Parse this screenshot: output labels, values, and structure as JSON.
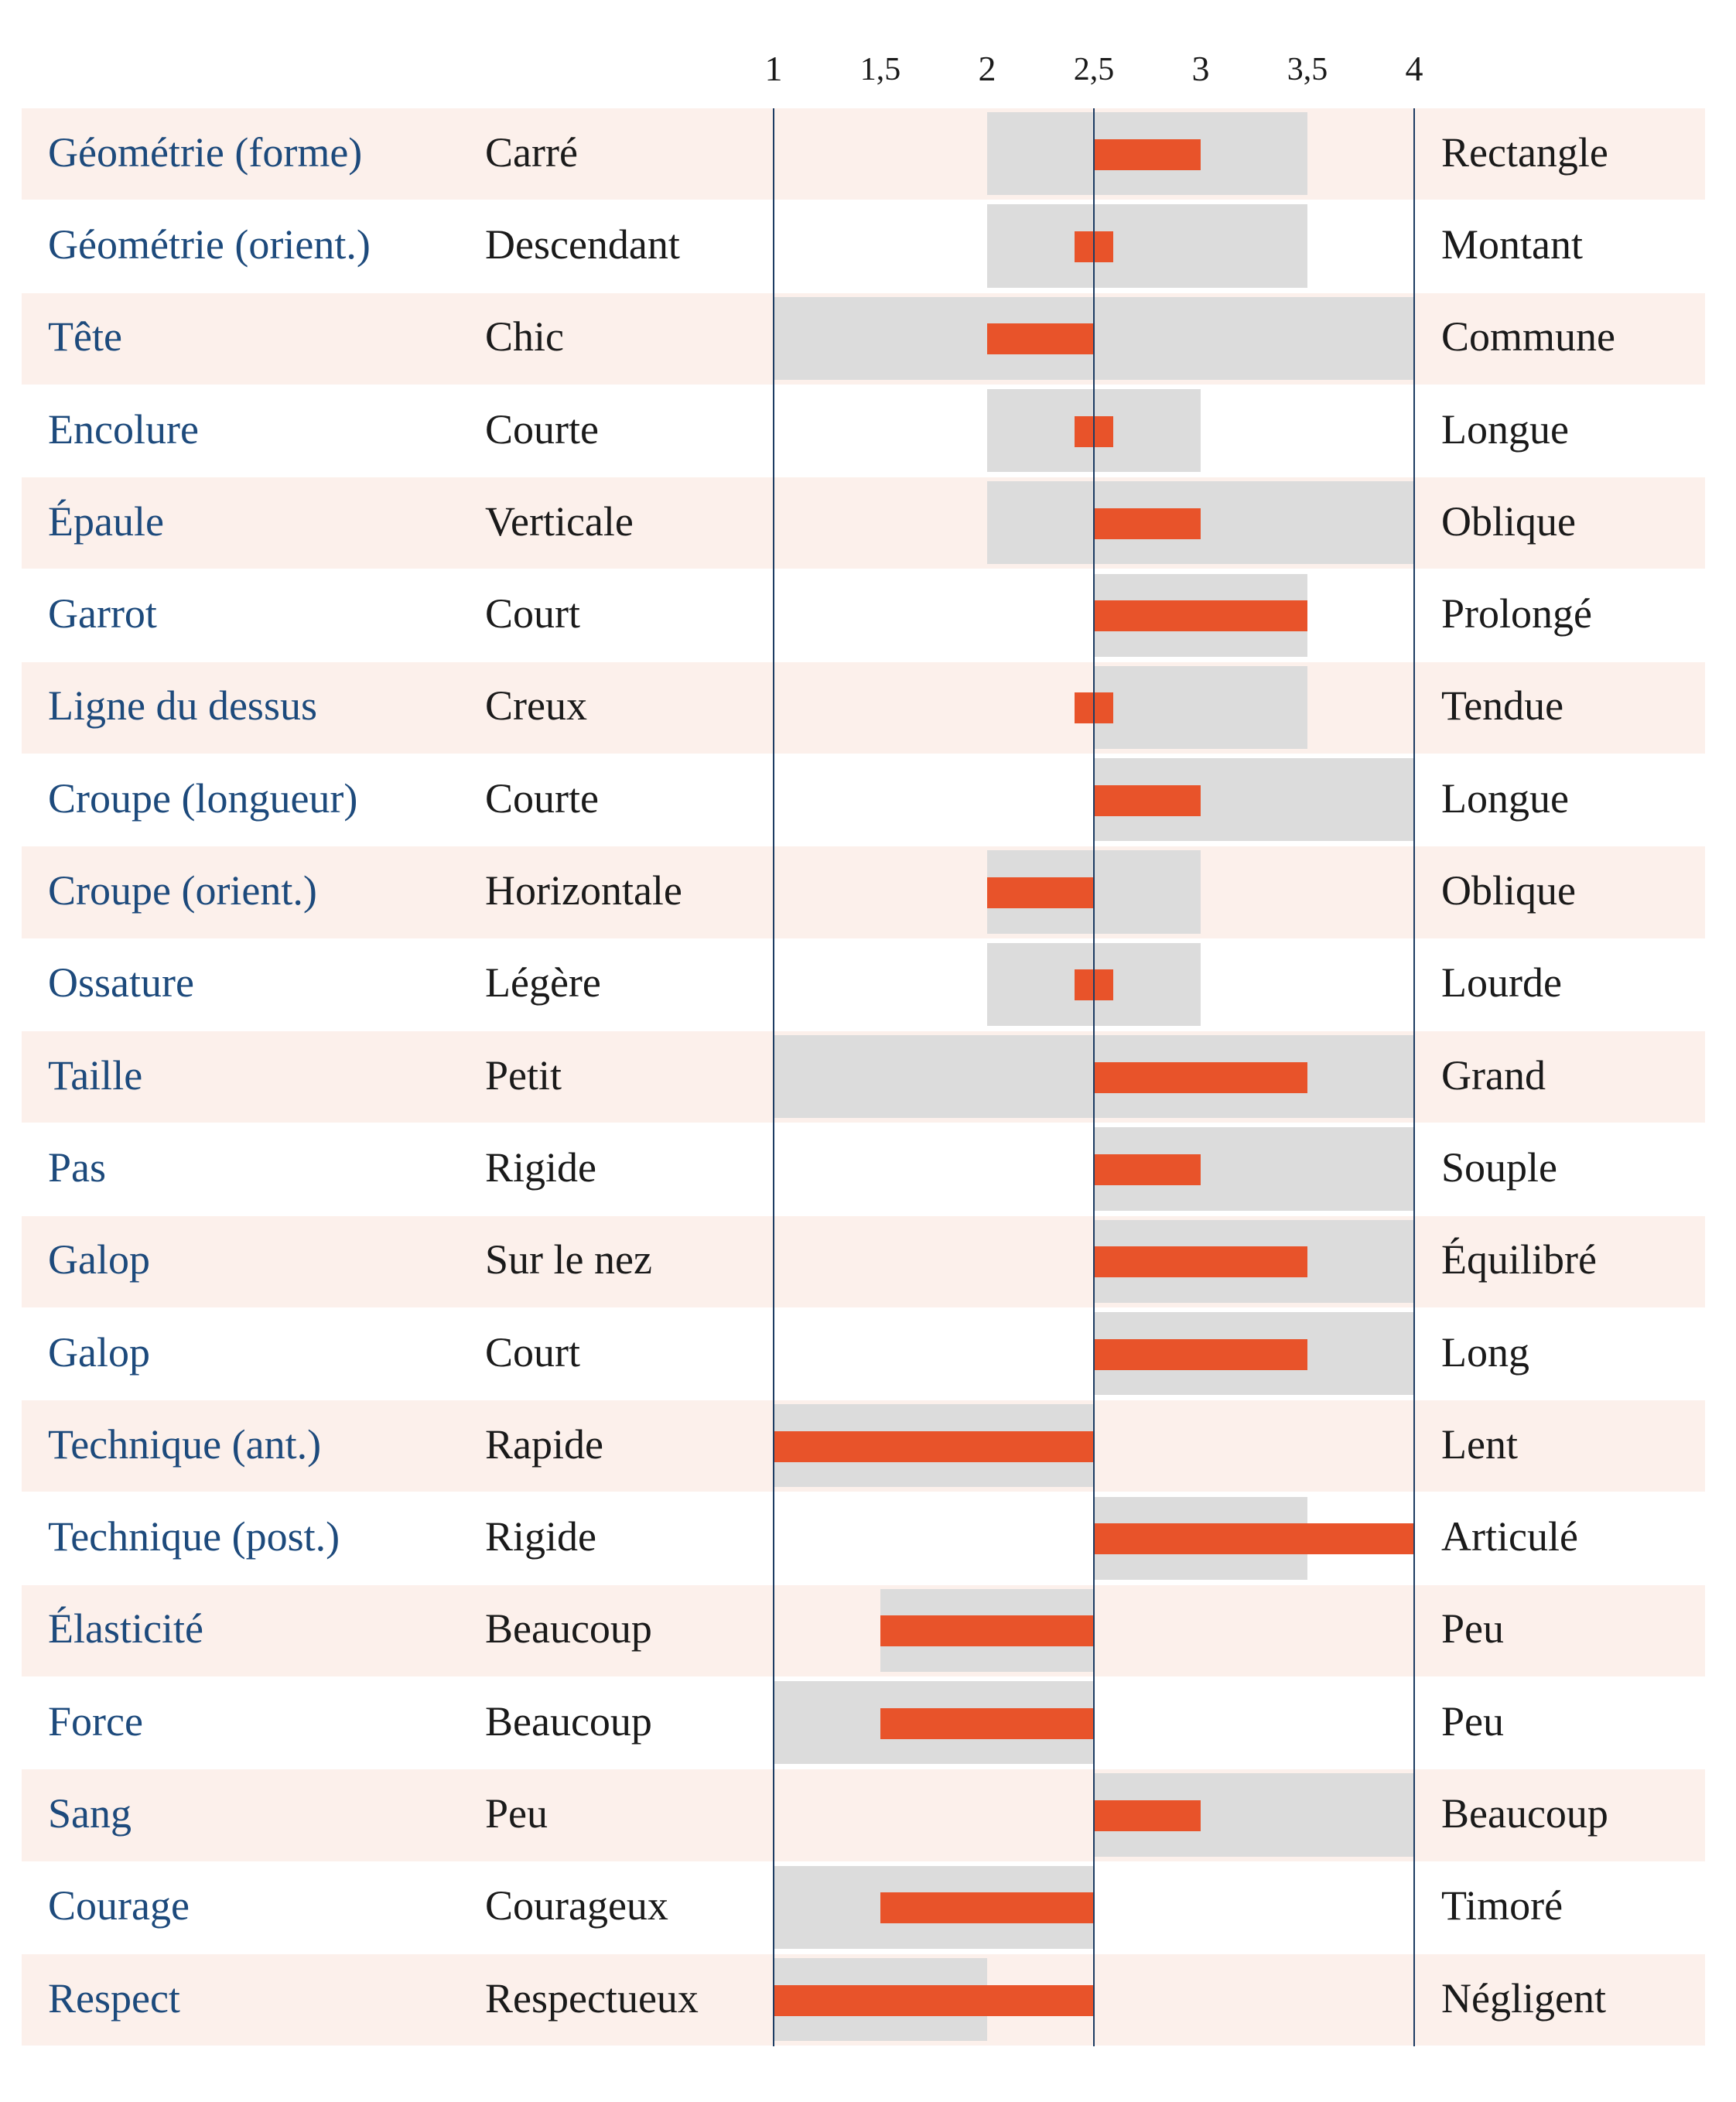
{
  "chart_data": {
    "type": "bar",
    "x_ticks": [
      "1",
      "1,5",
      "2",
      "2,5",
      "3",
      "3,5",
      "4"
    ],
    "xlim": [
      1,
      4
    ],
    "center": 2.5,
    "colors": {
      "band": "#fcf0eb",
      "range": "#dcdcdc",
      "bar": "#e8532a",
      "trait_text": "#1d4a7c",
      "axis": "#1d3c63"
    },
    "rows": [
      {
        "trait": "Géométrie (forme)",
        "left": "Carré",
        "right": "Rectangle",
        "range": [
          2,
          3.5
        ],
        "value": 3
      },
      {
        "trait": "Géométrie (orient.)",
        "left": "Descendant",
        "right": "Montant",
        "range": [
          2,
          3.5
        ],
        "value": 2.5
      },
      {
        "trait": "Tête",
        "left": "Chic",
        "right": "Commune",
        "range": [
          1,
          4
        ],
        "value": 2
      },
      {
        "trait": "Encolure",
        "left": "Courte",
        "right": "Longue",
        "range": [
          2,
          3
        ],
        "value": 2.5
      },
      {
        "trait": "Épaule",
        "left": "Verticale",
        "right": "Oblique",
        "range": [
          2,
          4
        ],
        "value": 3
      },
      {
        "trait": "Garrot",
        "left": "Court",
        "right": "Prolongé",
        "range": [
          2.5,
          3.5
        ],
        "value": 3.5
      },
      {
        "trait": "Ligne du dessus",
        "left": "Creux",
        "right": "Tendue",
        "range": [
          2.5,
          3.5
        ],
        "value": 2.5
      },
      {
        "trait": "Croupe (longueur)",
        "left": "Courte",
        "right": "Longue",
        "range": [
          2.5,
          4
        ],
        "value": 3
      },
      {
        "trait": "Croupe (orient.)",
        "left": "Horizontale",
        "right": "Oblique",
        "range": [
          2,
          3
        ],
        "value": 2
      },
      {
        "trait": "Ossature",
        "left": "Légère",
        "right": "Lourde",
        "range": [
          2,
          3
        ],
        "value": 2.5
      },
      {
        "trait": "Taille",
        "left": "Petit",
        "right": "Grand",
        "range": [
          1,
          4
        ],
        "value": 3.5
      },
      {
        "trait": "Pas",
        "left": "Rigide",
        "right": "Souple",
        "range": [
          2.5,
          4
        ],
        "value": 3
      },
      {
        "trait": "Galop",
        "left": "Sur le nez",
        "right": "Équilibré",
        "range": [
          2.5,
          4
        ],
        "value": 3.5
      },
      {
        "trait": "Galop",
        "left": "Court",
        "right": "Long",
        "range": [
          2.5,
          4
        ],
        "value": 3.5
      },
      {
        "trait": "Technique (ant.)",
        "left": "Rapide",
        "right": "Lent",
        "range": [
          1,
          2.5
        ],
        "value": 1
      },
      {
        "trait": "Technique (post.)",
        "left": "Rigide",
        "right": "Articulé",
        "range": [
          2.5,
          3.5
        ],
        "value": 4
      },
      {
        "trait": "Élasticité",
        "left": "Beaucoup",
        "right": "Peu",
        "range": [
          1.5,
          2.5
        ],
        "value": 1.5
      },
      {
        "trait": "Force",
        "left": "Beaucoup",
        "right": "Peu",
        "range": [
          1,
          2.5
        ],
        "value": 1.5
      },
      {
        "trait": "Sang",
        "left": "Peu",
        "right": "Beaucoup",
        "range": [
          2.5,
          4
        ],
        "value": 3
      },
      {
        "trait": "Courage",
        "left": "Courageux",
        "right": "Timoré",
        "range": [
          1,
          2.5
        ],
        "value": 1.5
      },
      {
        "trait": "Respect",
        "left": "Respectueux",
        "right": "Négligent",
        "range": [
          1,
          2
        ],
        "value": 1
      }
    ]
  }
}
